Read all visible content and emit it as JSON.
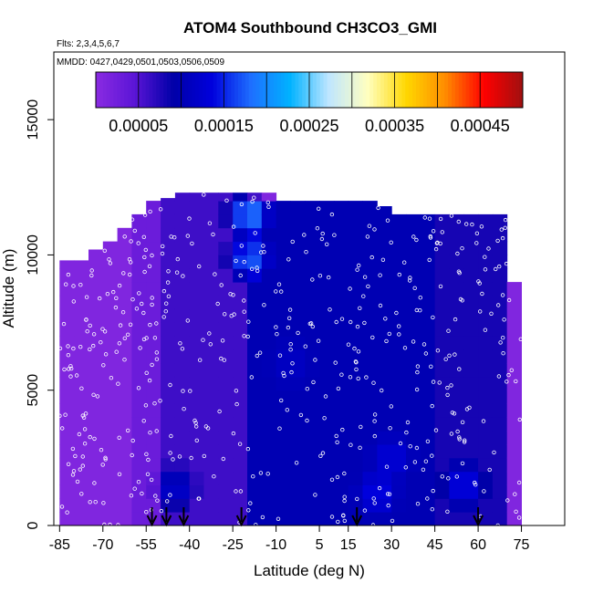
{
  "chart_data": {
    "type": "heatmap",
    "title": "ATOM4 Southbound CH3CO3_GMI",
    "flights_note": "Flts: 2,3,4,5,6,7",
    "dates_note": "MMDD: 0427,0429,0501,0503,0506,0509",
    "xlabel": "Latitude (deg N)",
    "ylabel": "Altitude (m)",
    "xlim": [
      -87,
      90
    ],
    "ylim": [
      0,
      17500
    ],
    "x_ticks": [
      -85,
      -70,
      -55,
      -40,
      -25,
      -10,
      5,
      15,
      30,
      45,
      60,
      75
    ],
    "x_tick_labels": [
      "-85",
      "-70",
      "-55",
      "-40",
      "-25",
      "-10",
      "5",
      "15",
      "30",
      "45",
      "60",
      "75"
    ],
    "y_ticks": [
      0,
      5000,
      10000,
      15000
    ],
    "y_tick_labels": [
      "0",
      "5000",
      "10000",
      "15000"
    ],
    "colorbar": {
      "min": 0.0,
      "max": 0.0005,
      "tick_values": [
        5e-05,
        0.00015,
        0.00025,
        0.00035,
        0.00045
      ],
      "tick_labels": [
        "0.00005",
        "0.00015",
        "0.00025",
        "0.00035",
        "0.00045"
      ],
      "colors": [
        "#8a2be2",
        "#5b15d6",
        "#0000a8",
        "#0000dd",
        "#1e6fff",
        "#00b2ff",
        "#bfe6ff",
        "#ffffc0",
        "#ffd700",
        "#ff8c00",
        "#ff0000",
        "#a01010"
      ]
    },
    "lat_columns": [
      -85,
      -80,
      -75,
      -70,
      -65,
      -60,
      -55,
      -50,
      -45,
      -40,
      -35,
      -30,
      -25,
      -20,
      -15,
      -10,
      -5,
      0,
      5,
      10,
      15,
      20,
      25,
      30,
      35,
      40,
      45,
      50,
      55,
      60,
      65,
      70
    ],
    "column_top_altitude": [
      9800,
      9800,
      10200,
      10500,
      11000,
      11500,
      12000,
      12100,
      12300,
      12300,
      12300,
      12300,
      12300,
      12300,
      12300,
      12000,
      12000,
      12000,
      12000,
      12000,
      12000,
      12000,
      11800,
      11500,
      11500,
      11500,
      11500,
      11500,
      11500,
      11500,
      11500,
      9000
    ],
    "value_bands": [
      {
        "lat_from": -85,
        "lat_to": -62,
        "alt_from": 0,
        "alt_to": 12000,
        "value": 1e-05
      },
      {
        "lat_from": -62,
        "lat_to": -48,
        "alt_from": 0,
        "alt_to": 12000,
        "value": 3e-05
      },
      {
        "lat_from": -48,
        "lat_to": -20,
        "alt_from": 0,
        "alt_to": 12300,
        "value": 6e-05
      },
      {
        "lat_from": -20,
        "lat_to": 45,
        "alt_from": 0,
        "alt_to": 12000,
        "value": 0.0001
      },
      {
        "lat_from": 45,
        "lat_to": 72,
        "alt_from": 0,
        "alt_to": 11500,
        "value": 8e-05
      }
    ],
    "hotspots": [
      {
        "lat": -20,
        "alt": 11500,
        "value": 0.00022
      },
      {
        "lat": -20,
        "alt": 9900,
        "value": 0.0002
      },
      {
        "lat": 25,
        "alt": 1200,
        "value": 0.00015
      },
      {
        "lat": 30,
        "alt": 2500,
        "value": 0.00014
      },
      {
        "lat": -45,
        "alt": 1400,
        "value": 0.00014
      },
      {
        "lat": 55,
        "alt": 1500,
        "value": 0.00016
      },
      {
        "lat": -5,
        "alt": 6000,
        "value": 0.00012
      }
    ],
    "flight_arrows_lat": [
      -53,
      -48,
      -42,
      -22,
      18,
      60
    ],
    "observation_point_count": 640
  }
}
